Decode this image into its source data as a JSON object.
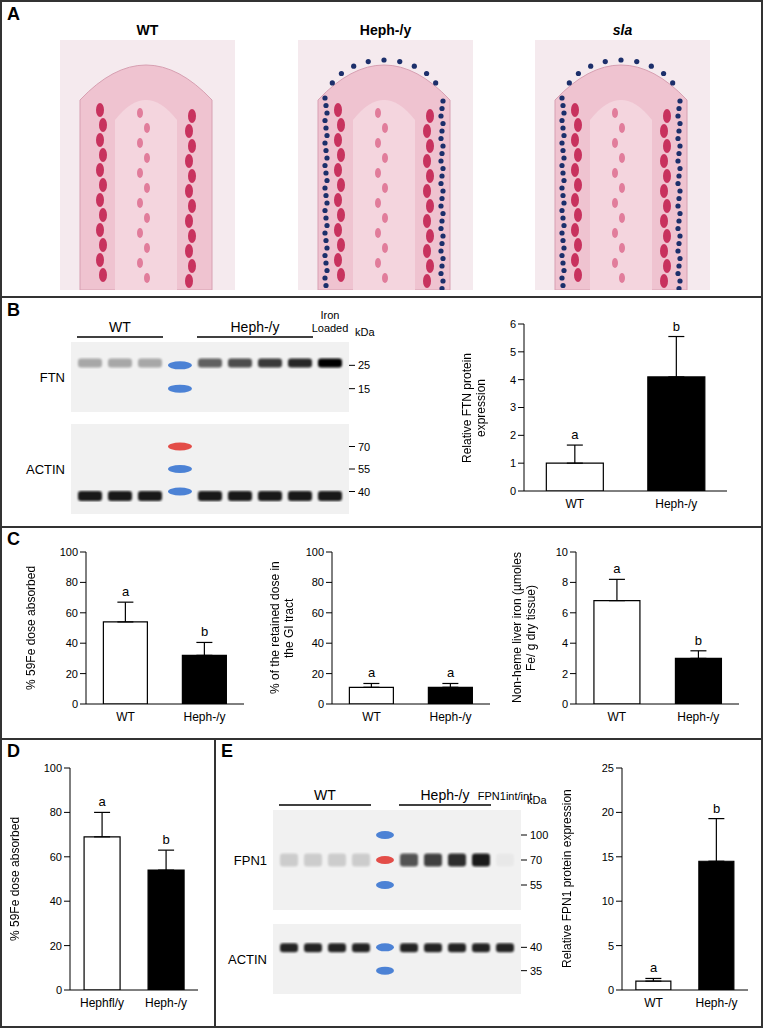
{
  "panels": [
    {
      "label": "A",
      "images": [
        "WT",
        "Heph-/y",
        "sla"
      ]
    },
    {
      "label": "B",
      "blot": {
        "groups": [
          {
            "label": "WT",
            "lanes": 3
          },
          {
            "label": "Heph-/y",
            "lanes": 4
          },
          {
            "label": "Iron Loaded",
            "lanes": 1
          }
        ],
        "unit": "kDa",
        "rows": [
          {
            "label": "FTN",
            "markers": [
              25,
              15
            ]
          },
          {
            "label": "ACTIN",
            "markers": [
              70,
              55,
              40
            ]
          }
        ]
      }
    },
    {
      "label": "C"
    },
    {
      "label": "D"
    },
    {
      "label": "E",
      "blot": {
        "groups": [
          {
            "label": "WT",
            "lanes": 4
          },
          {
            "label": "Heph-/y",
            "lanes": 4
          },
          {
            "label": "FPN1int/int",
            "lanes": 1
          }
        ],
        "unit": "kDa",
        "rows": [
          {
            "label": "FPN1",
            "markers": [
              100,
              70,
              55
            ]
          },
          {
            "label": "ACTIN",
            "markers": [
              40,
              35
            ]
          }
        ]
      }
    }
  ],
  "chart_data": [
    {
      "type": "bar",
      "ylabel": "Relative FTN protein expression",
      "categories": [
        "WT",
        "Heph-/y"
      ],
      "values": [
        1.0,
        4.1
      ],
      "errors": [
        0.65,
        1.45
      ],
      "annotations": [
        "a",
        "b"
      ],
      "colors": [
        "#ffffff",
        "#000000"
      ],
      "ylim": [
        0,
        6
      ],
      "yticks": [
        0,
        1,
        2,
        3,
        4,
        5,
        6
      ]
    },
    {
      "type": "bar",
      "ylabel": "% 59Fe dose absorbed",
      "categories": [
        "WT",
        "Heph-/y"
      ],
      "values": [
        54,
        32
      ],
      "errors": [
        13,
        8.5
      ],
      "annotations": [
        "a",
        "b"
      ],
      "colors": [
        "#ffffff",
        "#000000"
      ],
      "ylim": [
        0,
        100
      ],
      "yticks": [
        0,
        20,
        40,
        60,
        80,
        100
      ]
    },
    {
      "type": "bar",
      "ylabel": "% of the retained dose in the GI tract",
      "categories": [
        "WT",
        "Heph-/y"
      ],
      "values": [
        11,
        11
      ],
      "errors": [
        2.5,
        2.5
      ],
      "annotations": [
        "a",
        "a"
      ],
      "colors": [
        "#ffffff",
        "#000000"
      ],
      "ylim": [
        0,
        100
      ],
      "yticks": [
        0,
        20,
        40,
        60,
        80,
        100
      ]
    },
    {
      "type": "bar",
      "ylabel": "Non-heme liver iron (µmoles Fe/ g dry tissue)",
      "categories": [
        "WT",
        "Heph-/y"
      ],
      "values": [
        6.8,
        3.0
      ],
      "errors": [
        1.4,
        0.5
      ],
      "annotations": [
        "a",
        "b"
      ],
      "colors": [
        "#ffffff",
        "#000000"
      ],
      "ylim": [
        0,
        10
      ],
      "yticks": [
        0,
        2,
        4,
        6,
        8,
        10
      ]
    },
    {
      "type": "bar",
      "ylabel": "% 59Fe dose absorbed",
      "categories": [
        "Hephfl/y",
        "Heph-/y"
      ],
      "values": [
        69,
        54
      ],
      "errors": [
        11,
        9
      ],
      "annotations": [
        "a",
        "b"
      ],
      "colors": [
        "#ffffff",
        "#000000"
      ],
      "ylim": [
        0,
        100
      ],
      "yticks": [
        0,
        20,
        40,
        60,
        80,
        100
      ]
    },
    {
      "type": "bar",
      "ylabel": "Relative FPN1 protein expression",
      "categories": [
        "WT",
        "Heph-/y"
      ],
      "values": [
        1.0,
        14.5
      ],
      "errors": [
        0.3,
        4.8
      ],
      "annotations": [
        "a",
        "b"
      ],
      "colors": [
        "#ffffff",
        "#000000"
      ],
      "ylim": [
        0,
        25
      ],
      "yticks": [
        0,
        5,
        10,
        15,
        20,
        25
      ]
    }
  ]
}
